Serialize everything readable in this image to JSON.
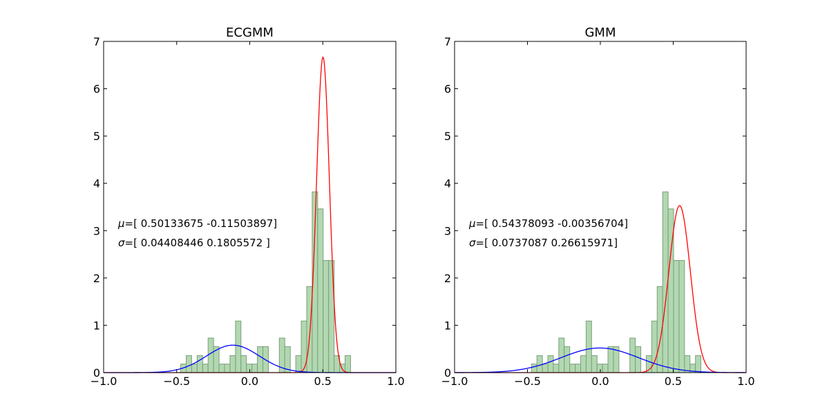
{
  "chart_data": [
    {
      "type": "histogram",
      "title": "ECGMM",
      "xlim": [
        -1.0,
        1.0
      ],
      "ylim": [
        0,
        7
      ],
      "xticks": [
        "−1.0",
        "−0.5",
        "0.0",
        "0.5",
        "1.0"
      ],
      "yticks": [
        "0",
        "1",
        "2",
        "3",
        "4",
        "5",
        "6",
        "7"
      ],
      "grid": false,
      "bin_width": 0.0375,
      "bin_starts": [
        -0.4725,
        -0.435,
        -0.3975,
        -0.36,
        -0.3225,
        -0.285,
        -0.2475,
        -0.21,
        -0.1725,
        -0.135,
        -0.0975,
        -0.06,
        -0.0225,
        0.015,
        0.0525,
        0.09,
        0.1275,
        0.165,
        0.2025,
        0.24,
        0.2775,
        0.315,
        0.3525,
        0.39,
        0.4275,
        0.465,
        0.5025,
        0.54,
        0.5775,
        0.615,
        0.6525,
        0.69,
        0.7275
      ],
      "values": [
        0.18,
        0.36,
        0.18,
        0.36,
        0.18,
        0.73,
        0.55,
        0.18,
        0.18,
        0.36,
        1.09,
        0.36,
        0.18,
        0.18,
        0.55,
        0.55,
        0,
        0,
        0.73,
        0.55,
        0,
        0.36,
        1.09,
        1.82,
        3.82,
        3.46,
        2.37,
        2.37,
        0.36,
        0.18,
        0.36,
        0,
        0
      ],
      "hist_color": "#b2d8b2",
      "curves": [
        {
          "color": "#ff0000",
          "mu": 0.50133675,
          "sigma": 0.04408446,
          "peak": 6.67
        },
        {
          "color": "#0000ff",
          "mu": -0.11503897,
          "sigma": 0.1805572,
          "peak": 0.58
        }
      ],
      "annotations": [
        {
          "symbol": "μ",
          "text": "=[ 0.50133675 -0.11503897]"
        },
        {
          "symbol": "σ",
          "text": "=[ 0.04408446  0.1805572 ]"
        }
      ]
    },
    {
      "type": "histogram",
      "title": "GMM",
      "xlim": [
        -1.0,
        1.0
      ],
      "ylim": [
        0,
        7
      ],
      "xticks": [
        "−1.0",
        "−0.5",
        "0.0",
        "0.5",
        "1.0"
      ],
      "yticks": [
        "0",
        "1",
        "2",
        "3",
        "4",
        "5",
        "6",
        "7"
      ],
      "grid": false,
      "bin_width": 0.0375,
      "bin_starts": [
        -0.4725,
        -0.435,
        -0.3975,
        -0.36,
        -0.3225,
        -0.285,
        -0.2475,
        -0.21,
        -0.1725,
        -0.135,
        -0.0975,
        -0.06,
        -0.0225,
        0.015,
        0.0525,
        0.09,
        0.1275,
        0.165,
        0.2025,
        0.24,
        0.2775,
        0.315,
        0.3525,
        0.39,
        0.4275,
        0.465,
        0.5025,
        0.54,
        0.5775,
        0.615,
        0.6525,
        0.69,
        0.7275
      ],
      "values": [
        0.18,
        0.36,
        0.18,
        0.36,
        0.18,
        0.73,
        0.55,
        0.18,
        0.18,
        0.36,
        1.09,
        0.36,
        0.18,
        0.18,
        0.55,
        0.55,
        0,
        0,
        0.73,
        0.55,
        0,
        0.36,
        1.09,
        1.82,
        3.82,
        3.46,
        2.37,
        2.37,
        0.36,
        0.18,
        0.36,
        0,
        0
      ],
      "hist_color": "#b2d8b2",
      "curves": [
        {
          "color": "#ff0000",
          "mu": 0.54378093,
          "sigma": 0.0737087,
          "peak": 3.53
        },
        {
          "color": "#0000ff",
          "mu": -0.00356704,
          "sigma": 0.26615971,
          "peak": 0.52
        }
      ],
      "annotations": [
        {
          "symbol": "μ",
          "text": "=[ 0.54378093 -0.00356704]"
        },
        {
          "symbol": "σ",
          "text": "=[ 0.0737087   0.26615971]"
        }
      ]
    }
  ]
}
